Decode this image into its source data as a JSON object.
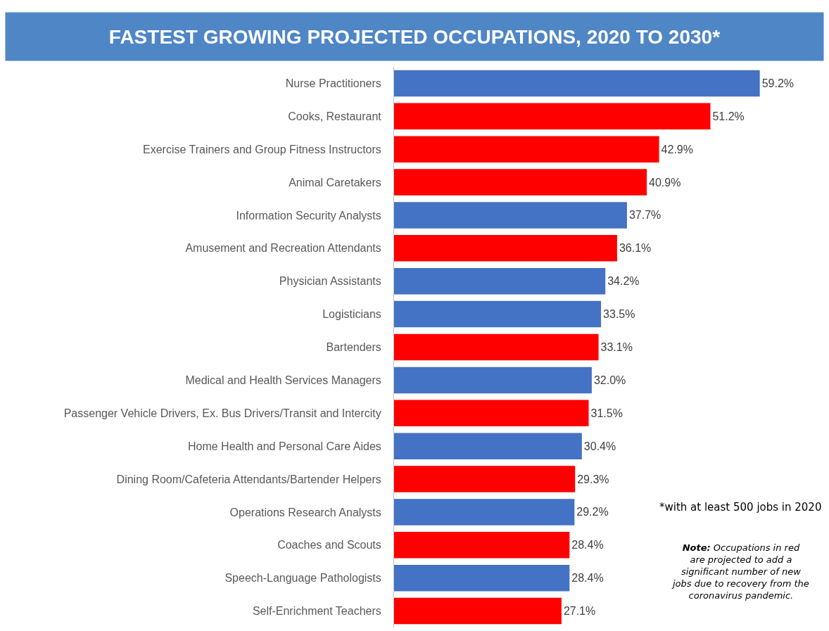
{
  "chart_data": {
    "type": "bar",
    "orientation": "horizontal",
    "title": "FASTEST GROWING PROJECTED OCCUPATIONS, 2020 TO 2030*",
    "categories": [
      "Nurse Practitioners",
      "Cooks, Restaurant",
      "Exercise Trainers and Group Fitness Instructors",
      "Animal Caretakers",
      "Information Security Analysts",
      "Amusement and Recreation Attendants",
      "Physician Assistants",
      "Logisticians",
      "Bartenders",
      "Medical and Health Services Managers",
      "Passenger Vehicle Drivers, Ex. Bus Drivers/Transit and Intercity",
      "Home Health and Personal Care Aides",
      "Dining Room/Cafeteria Attendants/Bartender Helpers",
      "Operations Research Analysts",
      "Coaches and Scouts",
      "Speech-Language Pathologists",
      "Self-Enrichment Teachers"
    ],
    "values": [
      59.2,
      51.2,
      42.9,
      40.9,
      37.7,
      36.1,
      34.2,
      33.5,
      33.1,
      32.0,
      31.5,
      30.4,
      29.3,
      29.2,
      28.4,
      28.4,
      27.1
    ],
    "value_labels": [
      "59.2%",
      "51.2%",
      "42.9%",
      "40.9%",
      "37.7%",
      "36.1%",
      "34.2%",
      "33.5%",
      "33.1%",
      "32.0%",
      "31.5%",
      "30.4%",
      "29.3%",
      "29.2%",
      "28.4%",
      "28.4%",
      "27.1%"
    ],
    "colors": [
      "#4472c4",
      "#ff0000",
      "#ff0000",
      "#ff0000",
      "#4472c4",
      "#ff0000",
      "#4472c4",
      "#4472c4",
      "#ff0000",
      "#4472c4",
      "#ff0000",
      "#4472c4",
      "#ff0000",
      "#4472c4",
      "#ff0000",
      "#4472c4",
      "#ff0000"
    ],
    "annotations": [
      "*with at least 500 jobs in 2020",
      "Note: Occupations in red\nare projected to add a\nsignificant number of new\njobs due to recovery from the\ncoronavirus pandemic."
    ],
    "legend": false
  }
}
